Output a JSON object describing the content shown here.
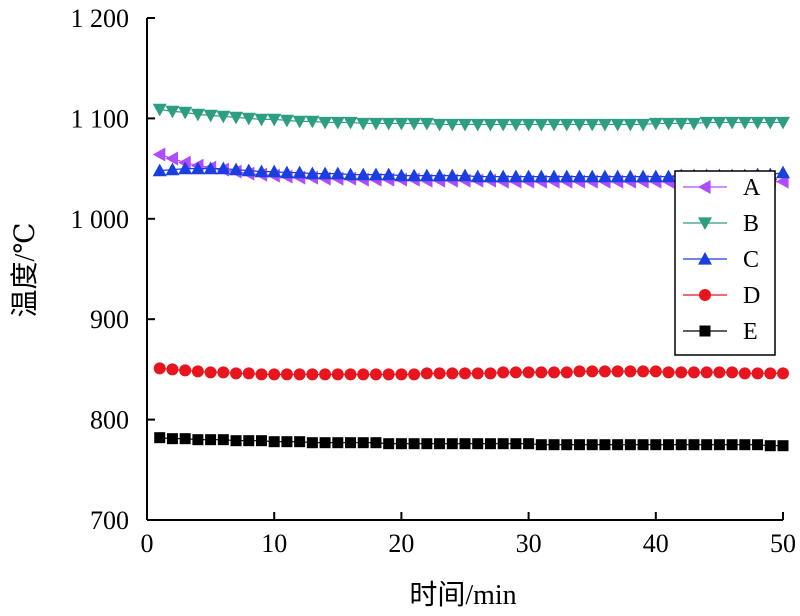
{
  "chart_data": {
    "type": "line",
    "title": "",
    "xlabel": "时间/min",
    "ylabel": "温度/℃",
    "xlim": [
      0,
      50
    ],
    "ylim": [
      700,
      1200
    ],
    "xticks": [
      0,
      10,
      20,
      30,
      40,
      50
    ],
    "yticks": [
      700,
      800,
      900,
      1000,
      1100,
      1200
    ],
    "xtick_labels": [
      "0",
      "10",
      "20",
      "30",
      "40",
      "50"
    ],
    "ytick_labels": [
      "700",
      "800",
      "900",
      "1 000",
      "1 100",
      "1 200"
    ],
    "grid": false,
    "legend": "right",
    "x": [
      1,
      2,
      3,
      4,
      5,
      6,
      7,
      8,
      9,
      10,
      11,
      12,
      13,
      14,
      15,
      16,
      17,
      18,
      19,
      20,
      21,
      22,
      23,
      24,
      25,
      26,
      27,
      28,
      29,
      30,
      31,
      32,
      33,
      34,
      35,
      36,
      37,
      38,
      39,
      40,
      41,
      42,
      43,
      44,
      45,
      46,
      47,
      48,
      49,
      50
    ],
    "series": [
      {
        "name": "A",
        "marker": "triangle-left",
        "color": "#b04cff",
        "values": [
          1064,
          1060,
          1056,
          1053,
          1051,
          1049,
          1047,
          1045,
          1044,
          1043,
          1042,
          1041,
          1041,
          1040,
          1040,
          1040,
          1039,
          1039,
          1039,
          1039,
          1039,
          1038,
          1038,
          1038,
          1038,
          1038,
          1038,
          1037,
          1037,
          1037,
          1037,
          1037,
          1037,
          1037,
          1037,
          1037,
          1037,
          1037,
          1037,
          1037,
          1037,
          1037,
          1037,
          1037,
          1037,
          1037,
          1037,
          1037,
          1037,
          1037
        ]
      },
      {
        "name": "B",
        "marker": "triangle-down",
        "color": "#2e9e82",
        "values": [
          1109,
          1107,
          1106,
          1104,
          1103,
          1102,
          1101,
          1100,
          1099,
          1099,
          1098,
          1097,
          1097,
          1096,
          1096,
          1096,
          1095,
          1095,
          1095,
          1095,
          1095,
          1095,
          1094,
          1094,
          1094,
          1094,
          1094,
          1094,
          1094,
          1094,
          1094,
          1094,
          1094,
          1094,
          1094,
          1094,
          1094,
          1094,
          1094,
          1095,
          1095,
          1095,
          1095,
          1096,
          1096,
          1096,
          1096,
          1096,
          1096,
          1096
        ]
      },
      {
        "name": "C",
        "marker": "triangle-up",
        "color": "#1a3fe0",
        "values": [
          1048,
          1049,
          1050,
          1050,
          1050,
          1050,
          1049,
          1048,
          1047,
          1047,
          1046,
          1046,
          1045,
          1045,
          1045,
          1044,
          1044,
          1044,
          1044,
          1043,
          1043,
          1043,
          1043,
          1043,
          1043,
          1042,
          1042,
          1042,
          1042,
          1042,
          1042,
          1042,
          1042,
          1042,
          1042,
          1042,
          1042,
          1042,
          1042,
          1042,
          1042,
          1043,
          1043,
          1043,
          1043,
          1043,
          1043,
          1044,
          1044,
          1046
        ]
      },
      {
        "name": "D",
        "marker": "circle",
        "color": "#e8141e",
        "values": [
          851,
          850,
          849,
          848,
          847,
          847,
          846,
          846,
          845,
          845,
          845,
          845,
          845,
          845,
          845,
          845,
          845,
          845,
          845,
          845,
          845,
          846,
          846,
          846,
          846,
          846,
          846,
          847,
          847,
          847,
          847,
          847,
          847,
          848,
          848,
          848,
          848,
          848,
          848,
          848,
          847,
          847,
          847,
          847,
          847,
          847,
          846,
          846,
          846,
          846
        ]
      },
      {
        "name": "E",
        "marker": "square",
        "color": "#000000",
        "values": [
          782,
          781,
          781,
          780,
          780,
          780,
          779,
          779,
          779,
          778,
          778,
          778,
          777,
          777,
          777,
          777,
          777,
          777,
          776,
          776,
          776,
          776,
          776,
          776,
          776,
          776,
          776,
          776,
          776,
          776,
          775,
          775,
          775,
          775,
          775,
          775,
          775,
          775,
          775,
          775,
          775,
          775,
          775,
          775,
          775,
          775,
          775,
          775,
          774,
          774
        ]
      }
    ]
  }
}
